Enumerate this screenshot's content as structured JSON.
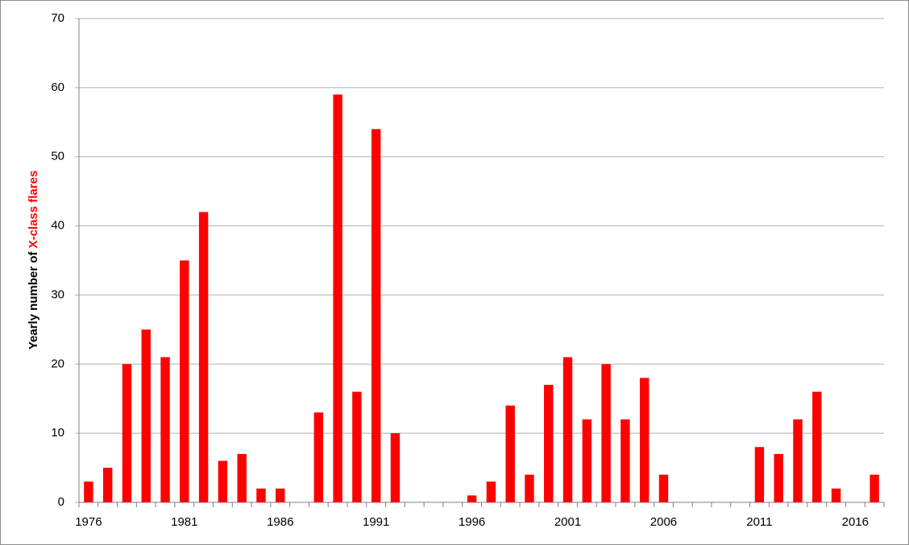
{
  "chart_data": {
    "type": "bar",
    "y_label_parts": [
      "Yearly number of ",
      "X-class flares"
    ],
    "y_label_colors": [
      "#000000",
      "#ff0000"
    ],
    "categories": [
      "1976",
      null,
      null,
      null,
      null,
      "1981",
      null,
      null,
      null,
      null,
      "1986",
      null,
      null,
      null,
      null,
      "1991",
      null,
      null,
      null,
      null,
      "1996",
      null,
      null,
      null,
      null,
      "2001",
      null,
      null,
      null,
      null,
      "2006",
      null,
      null,
      null,
      null,
      "2011",
      null,
      null,
      null,
      null,
      "2016",
      null
    ],
    "values": [
      3,
      5,
      20,
      25,
      21,
      35,
      42,
      6,
      7,
      2,
      2,
      0,
      13,
      59,
      16,
      54,
      10,
      0,
      0,
      0,
      1,
      3,
      14,
      4,
      17,
      21,
      12,
      20,
      12,
      18,
      4,
      0,
      0,
      0,
      0,
      8,
      7,
      12,
      16,
      2,
      0,
      4
    ],
    "color": "#ff0000",
    "ylim": [
      0,
      70
    ],
    "yticks": [
      0,
      10,
      20,
      30,
      40,
      50,
      60,
      70
    ],
    "grid": true
  }
}
